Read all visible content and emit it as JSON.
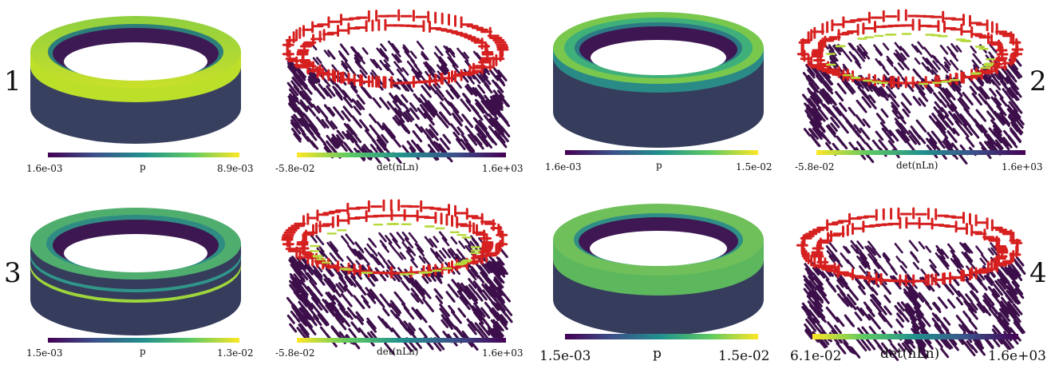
{
  "figure": {
    "panels": [
      {
        "number": "1",
        "p_colorbar": {
          "min": "1.6e-03",
          "label": "p",
          "max": "8.9e-03"
        },
        "det_colorbar": {
          "min": "-5.8e-02",
          "label": "det(nLn)",
          "max": "1.6e+03"
        }
      },
      {
        "number": "2",
        "p_colorbar": {
          "min": "1.6e-03",
          "label": "p",
          "max": "1.5e-02"
        },
        "det_colorbar": {
          "min": "-5.8e-02",
          "label": "det(nLn)",
          "max": "1.6e+03"
        }
      },
      {
        "number": "3",
        "p_colorbar": {
          "min": "1.5e-03",
          "label": "p",
          "max": "1.3e-02"
        },
        "det_colorbar": {
          "min": "-5.8e-02",
          "label": "det(nLn)",
          "max": "1.6e+03"
        }
      },
      {
        "number": "4",
        "p_colorbar": {
          "min": "1.5e-03",
          "label": "p",
          "max": "1.5e-02"
        },
        "det_colorbar": {
          "min": "6.1e-02",
          "label": "det(nLn)",
          "max": "1.6e+03"
        }
      }
    ],
    "colors": {
      "viridis_dark": "#440154",
      "viridis_mid": "#21918c",
      "viridis_light": "#fde725",
      "ring_body": "#3b4a6b",
      "director_red": "#d62020",
      "director_purple": "#3d0f4a",
      "director_green": "#b5d93a"
    }
  }
}
